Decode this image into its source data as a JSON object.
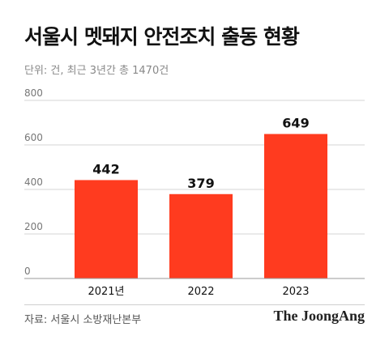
{
  "header": {
    "title": "서울시 멧돼지 안전조치 출동 현황",
    "subtitle": "단위: 건, 최근 3년간 총 1470건"
  },
  "footer": {
    "source": "자료: 서울시 소방재난본부",
    "logo": "The JoongAng"
  },
  "colors": {
    "bar": "#ff3b1f",
    "grid": "#d6d6d6",
    "tick": "#777777",
    "label": "#111111"
  },
  "chart_data": {
    "type": "bar",
    "title": "서울시 멧돼지 안전조치 출동 현황",
    "categories": [
      "2021년",
      "2022",
      "2023"
    ],
    "values": [
      442,
      379,
      649
    ],
    "ylim": [
      0,
      800
    ],
    "yticks": [
      0,
      200,
      400,
      600,
      800
    ],
    "grid": true
  }
}
